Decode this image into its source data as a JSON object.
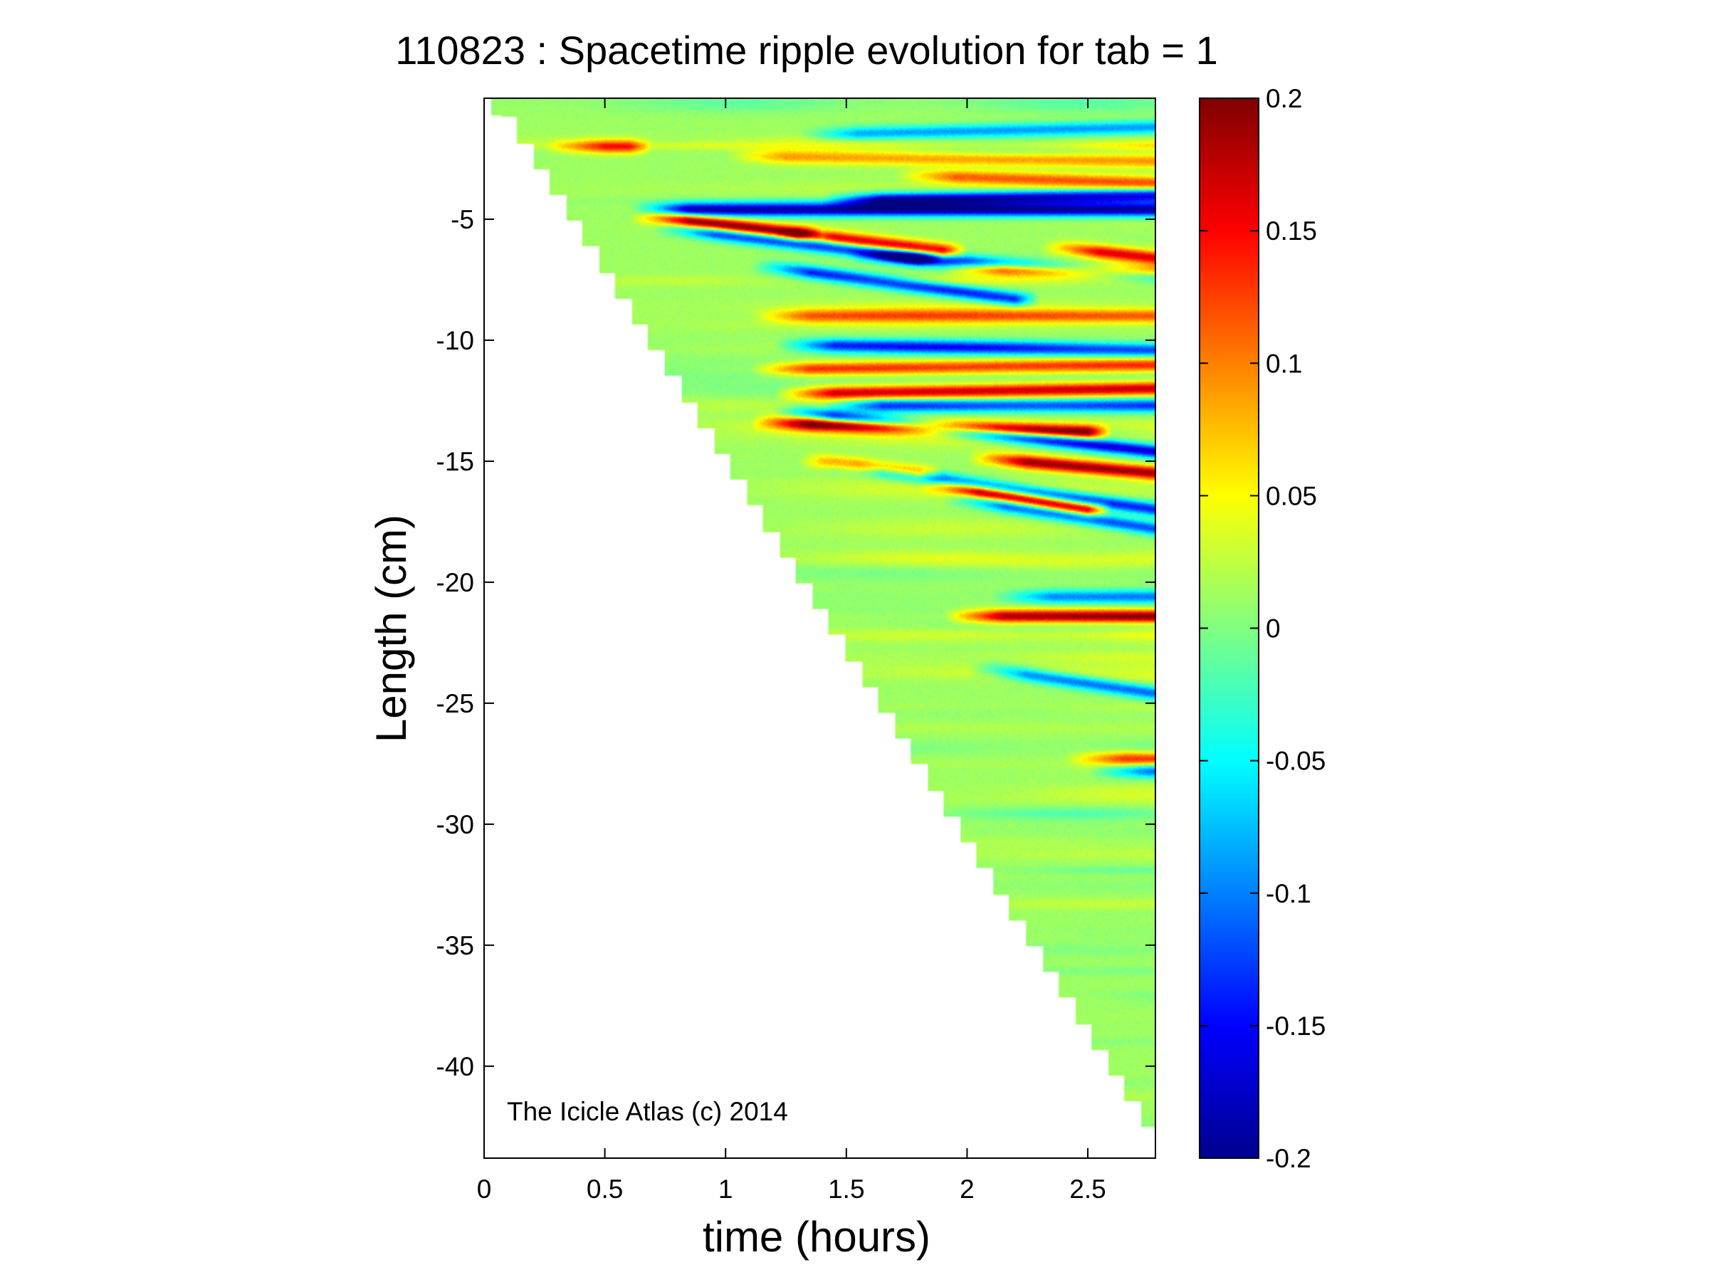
{
  "chart_data": {
    "type": "heatmap",
    "title": "110823 : Spacetime ripple evolution for tab = 1",
    "xlabel": "time (hours)",
    "ylabel": "Length (cm)",
    "xlim": [
      0,
      2.78
    ],
    "ylim": [
      -43.8,
      0
    ],
    "x_ticks": [
      0,
      0.5,
      1,
      1.5,
      2,
      2.5
    ],
    "x_tick_labels": [
      "0",
      "0.5",
      "1",
      "1.5",
      "2",
      "2.5"
    ],
    "y_ticks": [
      -5,
      -10,
      -15,
      -20,
      -25,
      -30,
      -35,
      -40
    ],
    "y_tick_labels": [
      "-5",
      "-10",
      "-15",
      "-20",
      "-25",
      "-30",
      "-35",
      "-40"
    ],
    "colorbar": {
      "colormap": "jet",
      "clim": [
        -0.2,
        0.2
      ],
      "ticks": [
        0.2,
        0.15,
        0.1,
        0.05,
        0,
        -0.05,
        -0.1,
        -0.15,
        -0.2
      ],
      "tick_labels": [
        "0.2",
        "0.15",
        "0.1",
        "0.05",
        "0",
        "-0.05",
        "-0.1",
        "-0.15",
        "-0.2"
      ]
    },
    "data_boundary": {
      "description": "Data exists only above the growth front; front length decreases linearly with time",
      "front_start": [
        0.05,
        -0.5
      ],
      "front_end": [
        2.75,
        -43
      ]
    },
    "ridges": [
      {
        "t0": 0.35,
        "t1": 0.6,
        "y0": -2.0,
        "y1": -2.0,
        "amp": 0.12
      },
      {
        "t0": 1.1,
        "t1": 2.78,
        "y0": -2.4,
        "y1": -2.6,
        "amp": 0.08
      },
      {
        "t0": 1.4,
        "t1": 2.78,
        "y0": -1.5,
        "y1": -1.2,
        "amp": -0.1
      },
      {
        "t0": 1.8,
        "t1": 2.78,
        "y0": -3.2,
        "y1": -3.5,
        "amp": 0.1
      },
      {
        "t0": 1.5,
        "t1": 2.78,
        "y0": -4.2,
        "y1": -4.0,
        "amp": -0.18
      },
      {
        "t0": 0.7,
        "t1": 2.78,
        "y0": -4.6,
        "y1": -4.6,
        "amp": -0.2
      },
      {
        "t0": 0.7,
        "t1": 1.3,
        "y0": -4.9,
        "y1": -5.6,
        "amp": 0.2
      },
      {
        "t0": 1.3,
        "t1": 1.9,
        "y0": -5.6,
        "y1": -6.3,
        "amp": 0.16
      },
      {
        "t0": 0.8,
        "t1": 1.8,
        "y0": -5.4,
        "y1": -6.6,
        "amp": -0.15
      },
      {
        "t0": 1.6,
        "t1": 2.78,
        "y0": -6.5,
        "y1": -7.3,
        "amp": -0.16
      },
      {
        "t0": 2.0,
        "t1": 2.78,
        "y0": -7.0,
        "y1": -7.2,
        "amp": 0.18
      },
      {
        "t0": 1.2,
        "t1": 2.2,
        "y0": -7.0,
        "y1": -8.3,
        "amp": -0.15
      },
      {
        "t0": 2.4,
        "t1": 2.78,
        "y0": -6.2,
        "y1": -6.6,
        "amp": 0.15
      },
      {
        "t0": 1.2,
        "t1": 2.78,
        "y0": -9.0,
        "y1": -9.0,
        "amp": 0.1
      },
      {
        "t0": 1.3,
        "t1": 2.78,
        "y0": -10.2,
        "y1": -10.4,
        "amp": -0.15
      },
      {
        "t0": 1.2,
        "t1": 2.78,
        "y0": -11.2,
        "y1": -11.0,
        "amp": 0.12
      },
      {
        "t0": 1.3,
        "t1": 2.78,
        "y0": -12.2,
        "y1": -12.0,
        "amp": 0.17
      },
      {
        "t0": 1.5,
        "t1": 2.78,
        "y0": -12.7,
        "y1": -12.7,
        "amp": -0.15
      },
      {
        "t0": 1.2,
        "t1": 2.5,
        "y0": -13.4,
        "y1": -13.8,
        "amp": 0.2
      },
      {
        "t0": 1.3,
        "t1": 2.78,
        "y0": -13.0,
        "y1": -14.6,
        "amp": -0.18
      },
      {
        "t0": 2.1,
        "t1": 2.78,
        "y0": -14.9,
        "y1": -15.5,
        "amp": 0.18
      },
      {
        "t0": 1.4,
        "t1": 1.8,
        "y0": -15.0,
        "y1": -15.5,
        "amp": 0.15
      },
      {
        "t0": 1.5,
        "t1": 2.78,
        "y0": -15.2,
        "y1": -17.0,
        "amp": -0.15
      },
      {
        "t0": 1.9,
        "t1": 2.5,
        "y0": -16.0,
        "y1": -17.0,
        "amp": 0.19
      },
      {
        "t0": 2.0,
        "t1": 2.78,
        "y0": -16.6,
        "y1": -17.8,
        "amp": -0.13
      },
      {
        "t0": 2.0,
        "t1": 2.78,
        "y0": -21.4,
        "y1": -21.4,
        "amp": 0.17
      },
      {
        "t0": 2.2,
        "t1": 2.78,
        "y0": -20.6,
        "y1": -20.6,
        "amp": -0.1
      },
      {
        "t0": 2.1,
        "t1": 2.78,
        "y0": -23.6,
        "y1": -24.6,
        "amp": -0.12
      },
      {
        "t0": 2.5,
        "t1": 2.78,
        "y0": -27.3,
        "y1": -27.3,
        "amp": 0.12
      },
      {
        "t0": 2.6,
        "t1": 2.78,
        "y0": -27.8,
        "y1": -27.8,
        "amp": -0.12
      }
    ],
    "annotation": "The Icicle Atlas (c) 2014"
  }
}
